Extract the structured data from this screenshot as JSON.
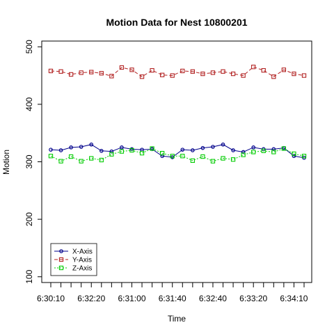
{
  "chart_data": {
    "type": "line",
    "title": "Motion Data for Nest 10800201",
    "xlabel": "Time",
    "ylabel": "Motion",
    "ylim": [
      90,
      510
    ],
    "y_ticks": [
      100,
      200,
      300,
      400,
      500
    ],
    "x_tick_labels": [
      "6:30:10",
      "6:32:20",
      "6:31:00",
      "6:31:40",
      "6:32:40",
      "6:33:20",
      "6:34:10"
    ],
    "x_tick_label_positions": [
      1,
      5,
      9,
      13,
      17,
      21,
      25
    ],
    "x_tick_count": 26,
    "box": true,
    "grid": false,
    "legend_position": "bottom-left",
    "x": [
      1,
      2,
      3,
      4,
      5,
      6,
      7,
      8,
      9,
      10,
      11,
      12,
      13,
      14,
      15,
      16,
      17,
      18,
      19,
      20,
      21,
      22,
      23,
      24,
      25,
      26
    ],
    "series": [
      {
        "name": "X-Axis",
        "color": "#00008b",
        "marker": "circle",
        "dash": "solid",
        "values": [
          321,
          320,
          325,
          326,
          330,
          319,
          318,
          325,
          322,
          321,
          322,
          310,
          308,
          321,
          320,
          324,
          326,
          330,
          320,
          317,
          325,
          322,
          322,
          324,
          310,
          307
        ]
      },
      {
        "name": "Y-Axis",
        "color": "#b22222",
        "marker": "square",
        "dash": "dashed",
        "values": [
          458,
          457,
          452,
          455,
          456,
          454,
          449,
          464,
          460,
          448,
          459,
          451,
          450,
          458,
          457,
          453,
          455,
          457,
          453,
          450,
          465,
          459,
          448,
          460,
          453,
          450
        ]
      },
      {
        "name": "Z-Axis",
        "color": "#00cc00",
        "marker": "square",
        "dash": "dotted",
        "values": [
          310,
          301,
          309,
          301,
          306,
          303,
          313,
          318,
          320,
          315,
          323,
          315,
          310,
          310,
          302,
          309,
          301,
          306,
          304,
          312,
          317,
          319,
          317,
          323,
          314,
          310
        ]
      }
    ]
  }
}
